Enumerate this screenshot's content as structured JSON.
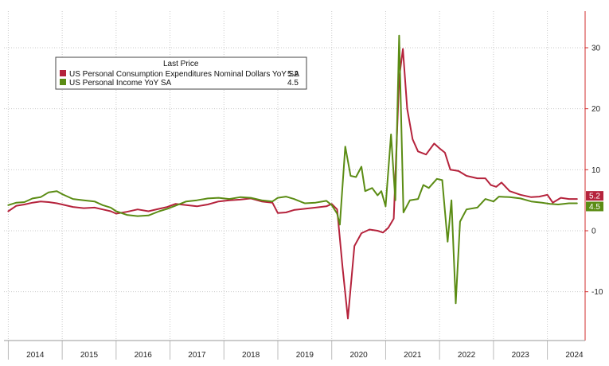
{
  "chart_data": {
    "type": "line",
    "title": "",
    "xlabel": "",
    "ylabel": "",
    "legend": {
      "heading": "Last Price",
      "placement": "top-left"
    },
    "x_ticks": [
      "2014",
      "2015",
      "2016",
      "2017",
      "2018",
      "2019",
      "2020",
      "2021",
      "2022",
      "2023",
      "2024"
    ],
    "y_ticks": [
      -10,
      0,
      10,
      20,
      30
    ],
    "ylim": [
      -18,
      36
    ],
    "xlim": [
      2013.92,
      2024.7
    ],
    "grid": true,
    "series": [
      {
        "name": "US Personal Consumption Expenditures Nominal Dollars YoY SA",
        "last": "5.2",
        "color": "#b5233c",
        "points": [
          [
            2014.0,
            3.2
          ],
          [
            2014.15,
            4.1
          ],
          [
            2014.3,
            4.3
          ],
          [
            2014.45,
            4.6
          ],
          [
            2014.6,
            4.8
          ],
          [
            2014.75,
            4.7
          ],
          [
            2014.9,
            4.5
          ],
          [
            2015.0,
            4.3
          ],
          [
            2015.2,
            3.9
          ],
          [
            2015.4,
            3.7
          ],
          [
            2015.6,
            3.8
          ],
          [
            2015.75,
            3.5
          ],
          [
            2015.9,
            3.2
          ],
          [
            2016.0,
            2.8
          ],
          [
            2016.2,
            3.1
          ],
          [
            2016.4,
            3.5
          ],
          [
            2016.6,
            3.2
          ],
          [
            2016.8,
            3.6
          ],
          [
            2016.95,
            3.9
          ],
          [
            2017.1,
            4.4
          ],
          [
            2017.3,
            4.2
          ],
          [
            2017.5,
            4.0
          ],
          [
            2017.7,
            4.3
          ],
          [
            2017.9,
            4.8
          ],
          [
            2018.1,
            5.0
          ],
          [
            2018.3,
            5.1
          ],
          [
            2018.5,
            5.3
          ],
          [
            2018.7,
            4.8
          ],
          [
            2018.9,
            4.6
          ],
          [
            2019.0,
            2.9
          ],
          [
            2019.15,
            3.0
          ],
          [
            2019.3,
            3.4
          ],
          [
            2019.5,
            3.6
          ],
          [
            2019.7,
            3.8
          ],
          [
            2019.9,
            4.0
          ],
          [
            2020.0,
            4.4
          ],
          [
            2020.1,
            3.5
          ],
          [
            2020.2,
            -6.0
          ],
          [
            2020.3,
            -14.4
          ],
          [
            2020.42,
            -2.5
          ],
          [
            2020.55,
            -0.4
          ],
          [
            2020.7,
            0.2
          ],
          [
            2020.85,
            0.0
          ],
          [
            2020.95,
            -0.3
          ],
          [
            2021.05,
            0.5
          ],
          [
            2021.15,
            2.0
          ],
          [
            2021.25,
            25.0
          ],
          [
            2021.32,
            29.8
          ],
          [
            2021.4,
            20.0
          ],
          [
            2021.5,
            15.0
          ],
          [
            2021.6,
            13.0
          ],
          [
            2021.75,
            12.5
          ],
          [
            2021.9,
            14.3
          ],
          [
            2022.0,
            13.5
          ],
          [
            2022.1,
            12.8
          ],
          [
            2022.2,
            10.0
          ],
          [
            2022.35,
            9.8
          ],
          [
            2022.5,
            9.0
          ],
          [
            2022.7,
            8.6
          ],
          [
            2022.85,
            8.6
          ],
          [
            2022.95,
            7.5
          ],
          [
            2023.05,
            7.2
          ],
          [
            2023.15,
            7.9
          ],
          [
            2023.3,
            6.5
          ],
          [
            2023.5,
            5.9
          ],
          [
            2023.7,
            5.5
          ],
          [
            2023.85,
            5.6
          ],
          [
            2024.0,
            5.9
          ],
          [
            2024.1,
            4.6
          ],
          [
            2024.25,
            5.4
          ],
          [
            2024.4,
            5.2
          ],
          [
            2024.55,
            5.2
          ]
        ]
      },
      {
        "name": "US Personal Income YoY SA",
        "last": "4.5",
        "color": "#5b8c14",
        "points": [
          [
            2014.0,
            4.2
          ],
          [
            2014.15,
            4.6
          ],
          [
            2014.3,
            4.7
          ],
          [
            2014.45,
            5.3
          ],
          [
            2014.6,
            5.5
          ],
          [
            2014.75,
            6.3
          ],
          [
            2014.9,
            6.5
          ],
          [
            2015.0,
            6.0
          ],
          [
            2015.2,
            5.2
          ],
          [
            2015.4,
            5.0
          ],
          [
            2015.6,
            4.8
          ],
          [
            2015.75,
            4.2
          ],
          [
            2015.9,
            3.8
          ],
          [
            2016.0,
            3.2
          ],
          [
            2016.2,
            2.6
          ],
          [
            2016.4,
            2.4
          ],
          [
            2016.6,
            2.5
          ],
          [
            2016.8,
            3.2
          ],
          [
            2016.95,
            3.6
          ],
          [
            2017.1,
            4.1
          ],
          [
            2017.3,
            4.8
          ],
          [
            2017.5,
            5.0
          ],
          [
            2017.7,
            5.3
          ],
          [
            2017.9,
            5.4
          ],
          [
            2018.1,
            5.2
          ],
          [
            2018.3,
            5.5
          ],
          [
            2018.5,
            5.4
          ],
          [
            2018.7,
            5.0
          ],
          [
            2018.9,
            4.8
          ],
          [
            2019.0,
            5.4
          ],
          [
            2019.15,
            5.6
          ],
          [
            2019.3,
            5.2
          ],
          [
            2019.5,
            4.5
          ],
          [
            2019.7,
            4.6
          ],
          [
            2019.9,
            4.9
          ],
          [
            2020.0,
            4.2
          ],
          [
            2020.1,
            2.8
          ],
          [
            2020.15,
            1.0
          ],
          [
            2020.25,
            13.8
          ],
          [
            2020.35,
            9.0
          ],
          [
            2020.45,
            8.8
          ],
          [
            2020.55,
            10.5
          ],
          [
            2020.62,
            6.5
          ],
          [
            2020.75,
            7.0
          ],
          [
            2020.85,
            5.8
          ],
          [
            2020.92,
            6.5
          ],
          [
            2021.0,
            4.0
          ],
          [
            2021.1,
            15.8
          ],
          [
            2021.18,
            5.0
          ],
          [
            2021.25,
            32.0
          ],
          [
            2021.33,
            3.0
          ],
          [
            2021.45,
            5.0
          ],
          [
            2021.6,
            5.2
          ],
          [
            2021.7,
            7.5
          ],
          [
            2021.8,
            7.0
          ],
          [
            2021.95,
            8.5
          ],
          [
            2022.05,
            8.3
          ],
          [
            2022.15,
            -1.8
          ],
          [
            2022.22,
            5.0
          ],
          [
            2022.3,
            -11.9
          ],
          [
            2022.38,
            1.5
          ],
          [
            2022.5,
            3.5
          ],
          [
            2022.7,
            3.8
          ],
          [
            2022.85,
            5.2
          ],
          [
            2023.0,
            4.8
          ],
          [
            2023.1,
            5.6
          ],
          [
            2023.3,
            5.5
          ],
          [
            2023.5,
            5.3
          ],
          [
            2023.7,
            4.8
          ],
          [
            2023.9,
            4.6
          ],
          [
            2024.05,
            4.4
          ],
          [
            2024.2,
            4.3
          ],
          [
            2024.4,
            4.5
          ],
          [
            2024.55,
            4.5
          ]
        ]
      }
    ]
  }
}
